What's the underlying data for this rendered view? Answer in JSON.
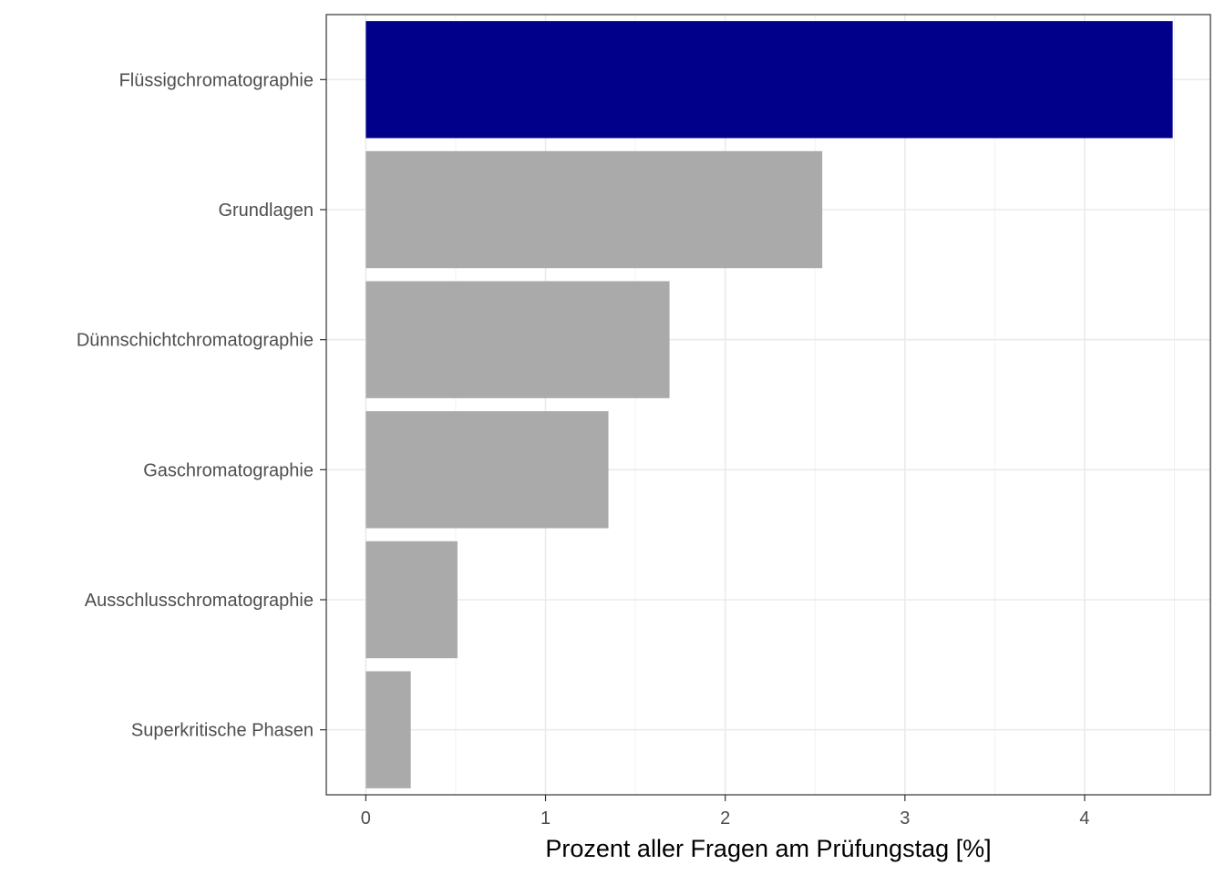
{
  "chart_data": {
    "type": "bar",
    "orientation": "horizontal",
    "title": "",
    "xlabel": "Prozent aller Fragen am Prüfungstag [%]",
    "ylabel": "",
    "xlim": [
      -0.22,
      4.7
    ],
    "xticks": [
      0,
      1,
      2,
      3,
      4
    ],
    "grid": true,
    "categories": [
      "Flüssigchromatographie",
      "Grundlagen",
      "Dünnschichtchromatographie",
      "Gaschromatographie",
      "Ausschlusschromatographie",
      "Superkritische Phasen"
    ],
    "values": [
      4.49,
      2.54,
      1.69,
      1.35,
      0.51,
      0.25
    ],
    "colors": [
      "#00008b",
      "#aaaaaa",
      "#aaaaaa",
      "#aaaaaa",
      "#aaaaaa",
      "#aaaaaa"
    ]
  }
}
